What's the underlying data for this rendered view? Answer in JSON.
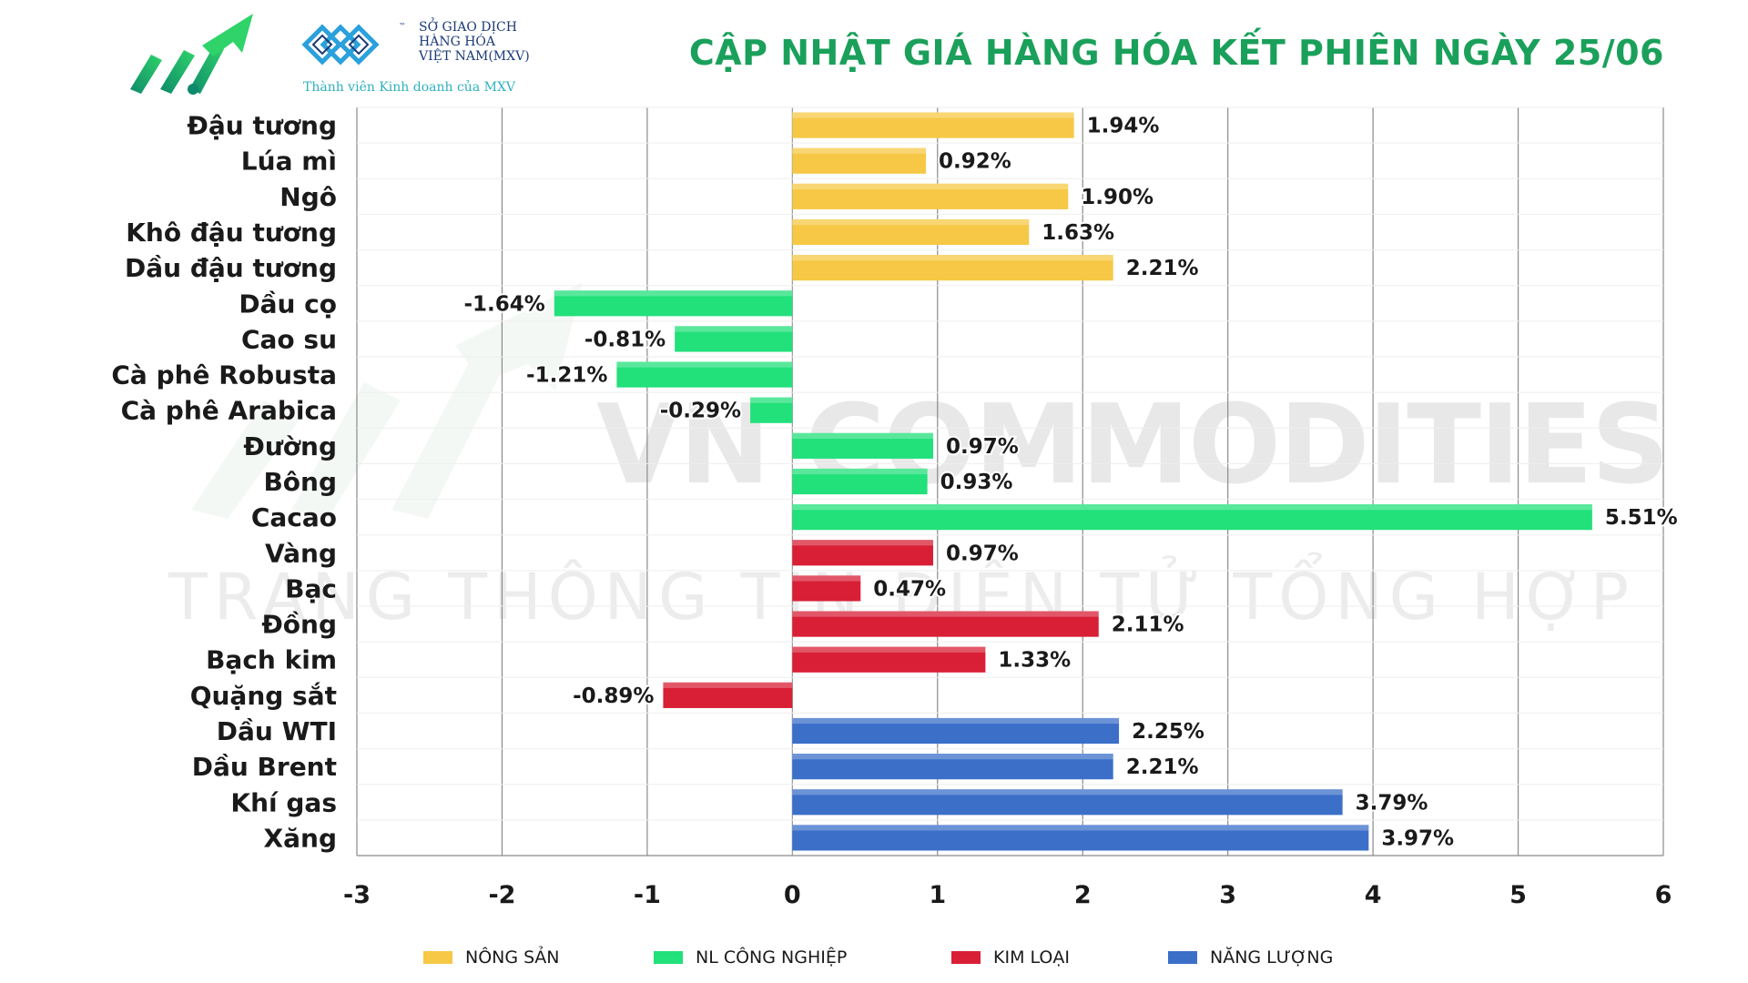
{
  "header": {
    "title": "CẬP NHẬT GIÁ HÀNG HÓA KẾT PHIÊN NGÀY 25/06",
    "mxv_name_lines": [
      "SỞ GIAO DỊCH",
      "HÀNG HÓA",
      "VIỆT NAM(MXV)"
    ],
    "mxv_tm": "™",
    "mxv_member": "Thành viên Kinh doanh của MXV"
  },
  "watermark": {
    "line1": "VN COMMODITIES",
    "line2": "TRANG THÔNG TIN ĐIỆN TỬ TỔNG HỢP"
  },
  "colors": {
    "nong_san": "#f6c845",
    "nl_cong_nghiep": "#22e07a",
    "kim_loai": "#d81f36",
    "nang_luong": "#3b6fc8",
    "title_green": "#1aa05a"
  },
  "chart_data": {
    "type": "bar",
    "orientation": "horizontal",
    "title": "CẬP NHẬT GIÁ HÀNG HÓA KẾT PHIÊN NGÀY 25/06",
    "xlim": [
      -3,
      6
    ],
    "xticks": [
      "-3",
      "-2",
      "-1",
      "0",
      "1",
      "2",
      "3",
      "4",
      "5",
      "6"
    ],
    "grid": "vertical",
    "legend_position": "bottom",
    "groups": [
      {
        "key": "nong_san",
        "name": "NÔNG SẢN"
      },
      {
        "key": "nl_cong_nghiep",
        "name": "NL CÔNG NGHIỆP"
      },
      {
        "key": "kim_loai",
        "name": "KIM LOẠI"
      },
      {
        "key": "nang_luong",
        "name": "NĂNG LƯỢNG"
      }
    ],
    "items": [
      {
        "label": "Đậu tương",
        "value": 1.94,
        "text": "1.94%",
        "group": "nong_san"
      },
      {
        "label": "Lúa mì",
        "value": 0.92,
        "text": "0.92%",
        "group": "nong_san"
      },
      {
        "label": "Ngô",
        "value": 1.9,
        "text": "1.90%",
        "group": "nong_san"
      },
      {
        "label": "Khô đậu tương",
        "value": 1.63,
        "text": "1.63%",
        "group": "nong_san"
      },
      {
        "label": "Dầu đậu tương",
        "value": 2.21,
        "text": "2.21%",
        "group": "nong_san"
      },
      {
        "label": "Dầu cọ",
        "value": -1.64,
        "text": "-1.64%",
        "group": "nl_cong_nghiep"
      },
      {
        "label": "Cao su",
        "value": -0.81,
        "text": "-0.81%",
        "group": "nl_cong_nghiep"
      },
      {
        "label": "Cà phê Robusta",
        "value": -1.21,
        "text": "-1.21%",
        "group": "nl_cong_nghiep"
      },
      {
        "label": "Cà phê Arabica",
        "value": -0.29,
        "text": "-0.29%",
        "group": "nl_cong_nghiep"
      },
      {
        "label": "Đường",
        "value": 0.97,
        "text": "0.97%",
        "group": "nl_cong_nghiep"
      },
      {
        "label": "Bông",
        "value": 0.93,
        "text": "0.93%",
        "group": "nl_cong_nghiep"
      },
      {
        "label": "Cacao",
        "value": 5.51,
        "text": "5.51%",
        "group": "nl_cong_nghiep"
      },
      {
        "label": "Vàng",
        "value": 0.97,
        "text": "0.97%",
        "group": "kim_loai"
      },
      {
        "label": "Bạc",
        "value": 0.47,
        "text": "0.47%",
        "group": "kim_loai"
      },
      {
        "label": "Đồng",
        "value": 2.11,
        "text": "2.11%",
        "group": "kim_loai"
      },
      {
        "label": "Bạch kim",
        "value": 1.33,
        "text": "1.33%",
        "group": "kim_loai"
      },
      {
        "label": "Quặng sắt",
        "value": -0.89,
        "text": "-0.89%",
        "group": "kim_loai"
      },
      {
        "label": "Dầu WTI",
        "value": 2.25,
        "text": "2.25%",
        "group": "nang_luong"
      },
      {
        "label": "Dầu Brent",
        "value": 2.21,
        "text": "2.21%",
        "group": "nang_luong"
      },
      {
        "label": "Khí gas",
        "value": 3.79,
        "text": "3.79%",
        "group": "nang_luong"
      },
      {
        "label": "Xăng",
        "value": 3.97,
        "text": "3.97%",
        "group": "nang_luong"
      }
    ]
  }
}
